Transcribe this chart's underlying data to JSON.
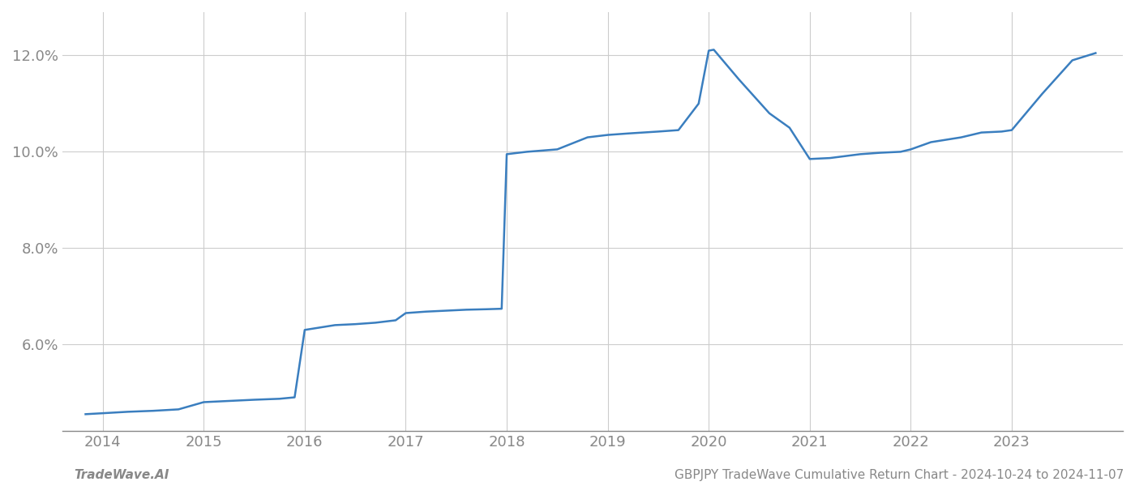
{
  "x_years": [
    2013.83,
    2014.0,
    2014.25,
    2014.5,
    2014.75,
    2015.0,
    2015.2,
    2015.5,
    2015.75,
    2015.9,
    2016.0,
    2016.15,
    2016.3,
    2016.5,
    2016.7,
    2016.9,
    2017.0,
    2017.2,
    2017.4,
    2017.6,
    2017.8,
    2017.95,
    2018.0,
    2018.2,
    2018.5,
    2018.8,
    2019.0,
    2019.2,
    2019.5,
    2019.7,
    2019.9,
    2020.0,
    2020.05,
    2020.3,
    2020.6,
    2020.8,
    2021.0,
    2021.2,
    2021.5,
    2021.7,
    2021.9,
    2022.0,
    2022.2,
    2022.5,
    2022.7,
    2022.9,
    2023.0,
    2023.3,
    2023.6,
    2023.83
  ],
  "y_values": [
    4.55,
    4.57,
    4.6,
    4.62,
    4.65,
    4.8,
    4.82,
    4.85,
    4.87,
    4.9,
    6.3,
    6.35,
    6.4,
    6.42,
    6.45,
    6.5,
    6.65,
    6.68,
    6.7,
    6.72,
    6.73,
    6.74,
    9.95,
    10.0,
    10.05,
    10.3,
    10.35,
    10.38,
    10.42,
    10.45,
    11.0,
    12.1,
    12.12,
    11.5,
    10.8,
    10.5,
    9.85,
    9.87,
    9.95,
    9.98,
    10.0,
    10.05,
    10.2,
    10.3,
    10.4,
    10.42,
    10.45,
    11.2,
    11.9,
    12.05
  ],
  "line_color": "#3a7ebf",
  "line_width": 1.8,
  "bg_color": "#ffffff",
  "grid_color": "#cccccc",
  "tick_label_color": "#888888",
  "xlabel_fontsize": 13,
  "ylabel_fontsize": 13,
  "xlim": [
    2013.6,
    2024.1
  ],
  "ylim": [
    4.2,
    12.9
  ],
  "xticks": [
    2014,
    2015,
    2016,
    2017,
    2018,
    2019,
    2020,
    2021,
    2022,
    2023
  ],
  "yticks": [
    6.0,
    8.0,
    10.0,
    12.0
  ],
  "ytick_labels": [
    "6.0%",
    "8.0%",
    "10.0%",
    "12.0%"
  ],
  "footer_left": "TradeWave.AI",
  "footer_right": "GBPJPY TradeWave Cumulative Return Chart - 2024-10-24 to 2024-11-07",
  "footer_fontsize": 11,
  "footer_color": "#888888"
}
